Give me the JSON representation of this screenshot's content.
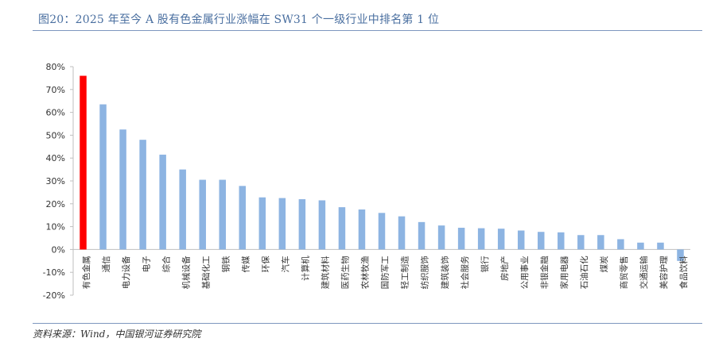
{
  "figure": {
    "title": "图20：2025 年至今 A 股有色金属行业涨幅在 SW31 个一级行业中排名第 1 位",
    "source": "资料来源：Wind，中国银河证券研究院"
  },
  "chart_data": {
    "type": "bar",
    "categories": [
      "有色金属",
      "通信",
      "电力设备",
      "电子",
      "综合",
      "机械设备",
      "基础化工",
      "钢铁",
      "传媒",
      "环保",
      "汽车",
      "计算机",
      "建筑材料",
      "医药生物",
      "农林牧渔",
      "国防军工",
      "轻工制造",
      "纺织服饰",
      "建筑装饰",
      "社会服务",
      "银行",
      "房地产",
      "公用事业",
      "非银金融",
      "家用电器",
      "石油石化",
      "煤炭",
      "商贸零售",
      "交通运输",
      "美容护理",
      "食品饮料"
    ],
    "series": [
      {
        "values": [
          76,
          63.5,
          52.5,
          48,
          41.5,
          35,
          30.5,
          30.5,
          27.8,
          22.8,
          22.5,
          22,
          21.5,
          18.5,
          17.5,
          16,
          14.5,
          12,
          10.5,
          9.5,
          9.3,
          9.1,
          8.3,
          7.7,
          7.5,
          6.3,
          6.3,
          4.5,
          3,
          3,
          -5
        ]
      }
    ],
    "highlight_index": 0,
    "colors": {
      "bar": "#8db4e2",
      "highlight": "#ff0000",
      "axis": "#bfbfbf",
      "text": "#333333"
    },
    "ylim": [
      -20,
      80
    ],
    "yticks": [
      "-20%",
      "-10%",
      "0%",
      "10%",
      "20%",
      "30%",
      "40%",
      "50%",
      "60%",
      "70%",
      "80%"
    ],
    "grid": false,
    "legend": "none"
  }
}
